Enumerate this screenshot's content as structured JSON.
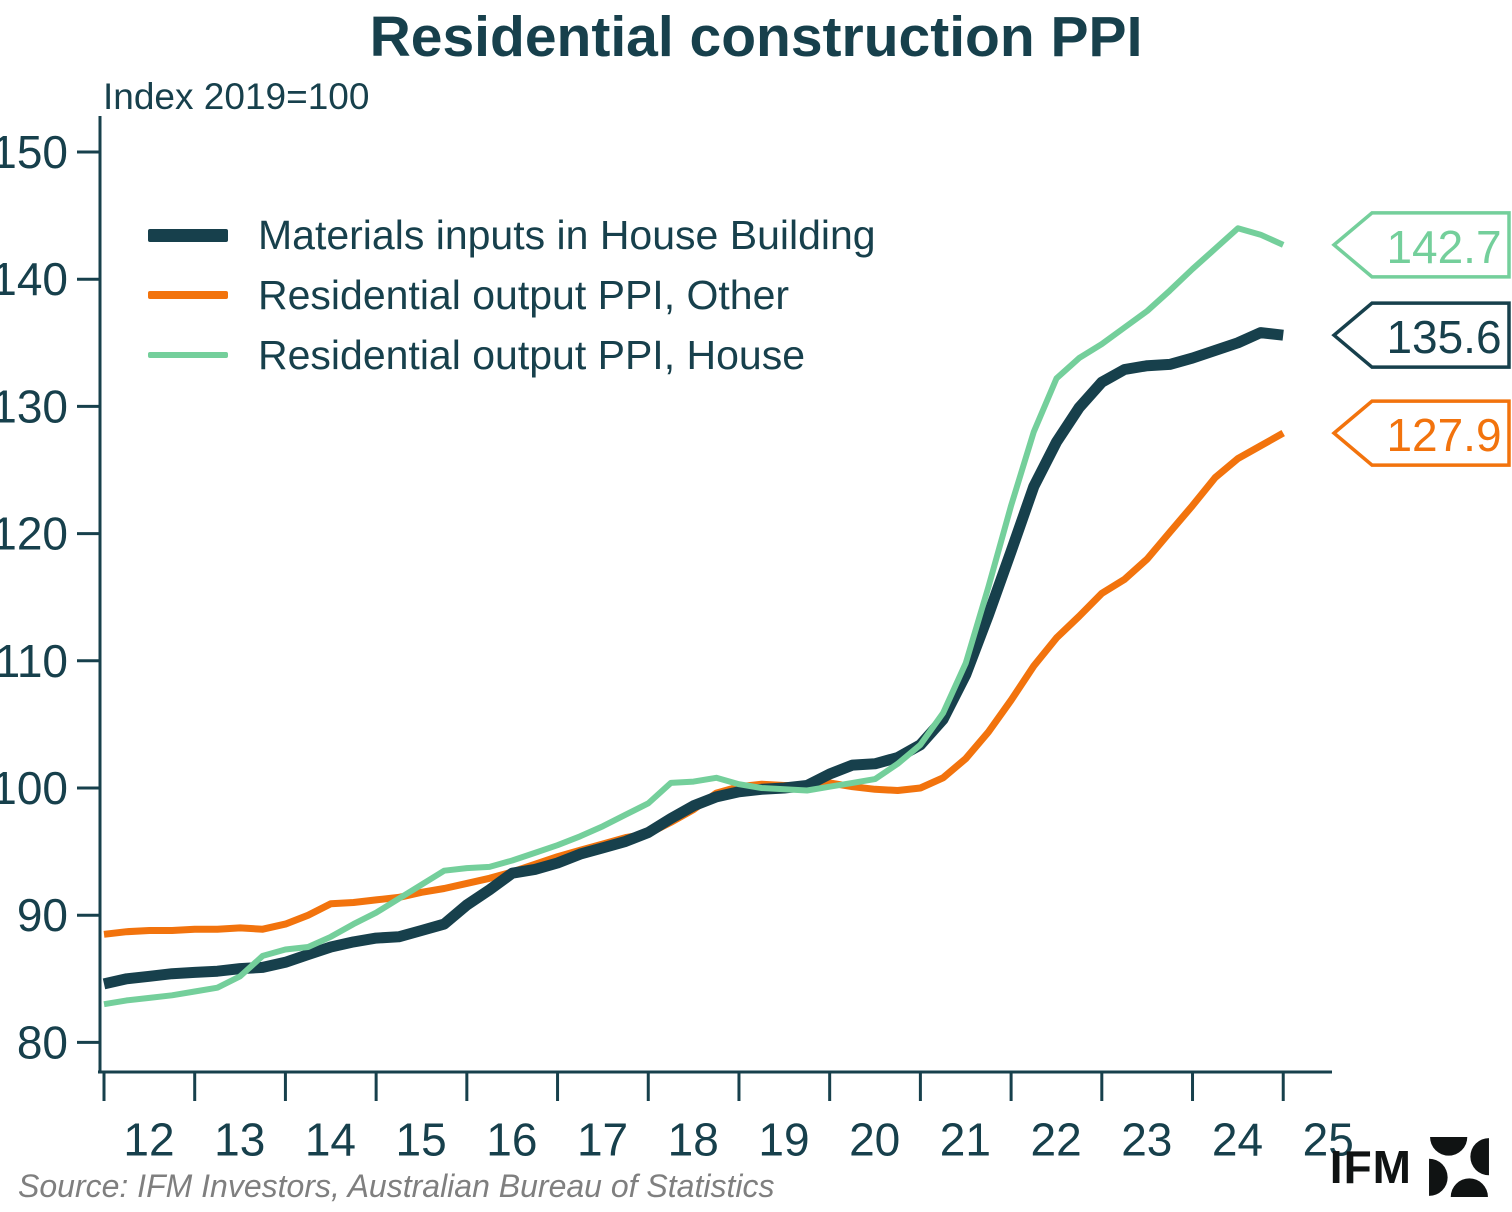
{
  "title": "Residential construction PPI",
  "subtitle": "Index 2019=100",
  "source": "Source: IFM Investors, Australian Bureau of Statistics",
  "logo": {
    "text": "IFM"
  },
  "colors": {
    "text": "#17404c",
    "axis": "#17404c",
    "background": "#ffffff",
    "source_text": "#7f7f7f",
    "logo": "#101313"
  },
  "chart_data": {
    "type": "line",
    "title": "Residential construction PPI",
    "ylabel": "Index 2019=100",
    "xlabel": "",
    "grid": false,
    "legend_position": "top-left",
    "ylim": [
      76,
      153
    ],
    "xlim": [
      2011.95,
      2025.5
    ],
    "y_ticks": [
      150,
      140,
      130,
      120,
      110,
      100,
      90,
      80
    ],
    "x_ticks": [
      "12",
      "13",
      "14",
      "15",
      "16",
      "17",
      "18",
      "19",
      "20",
      "21",
      "22",
      "23",
      "24",
      "25"
    ],
    "x": [
      2012,
      2012.25,
      2012.5,
      2012.75,
      2013,
      2013.25,
      2013.5,
      2013.75,
      2014,
      2014.25,
      2014.5,
      2014.75,
      2015,
      2015.25,
      2015.5,
      2015.75,
      2016,
      2016.25,
      2016.5,
      2016.75,
      2017,
      2017.25,
      2017.5,
      2017.75,
      2018,
      2018.25,
      2018.5,
      2018.75,
      2019,
      2019.25,
      2019.5,
      2019.75,
      2020,
      2020.25,
      2020.5,
      2020.75,
      2021,
      2021.25,
      2021.5,
      2021.75,
      2022,
      2022.25,
      2022.5,
      2022.75,
      2023,
      2023.25,
      2023.5,
      2023.75,
      2024,
      2024.25,
      2024.5,
      2024.75,
      2025
    ],
    "series": [
      {
        "name": "Materials inputs in House Building",
        "color": "#17404c",
        "line_width": 11,
        "end_label": "135.6",
        "values": [
          84.6,
          85.0,
          85.2,
          85.4,
          85.5,
          85.6,
          85.8,
          85.9,
          86.3,
          86.9,
          87.5,
          87.9,
          88.2,
          88.3,
          88.8,
          89.3,
          90.8,
          92.0,
          93.3,
          93.6,
          94.1,
          94.8,
          95.3,
          95.8,
          96.5,
          97.6,
          98.6,
          99.3,
          99.7,
          99.9,
          100.0,
          100.2,
          101.1,
          101.8,
          101.9,
          102.4,
          103.4,
          105.4,
          108.9,
          113.6,
          118.6,
          123.7,
          127.2,
          129.9,
          131.9,
          132.9,
          133.2,
          133.3,
          133.8,
          134.4,
          135.0,
          135.8,
          135.6
        ]
      },
      {
        "name": "Residential output PPI, Other",
        "color": "#f2730d",
        "line_width": 7,
        "end_label": "127.9",
        "values": [
          88.5,
          88.7,
          88.8,
          88.8,
          88.9,
          88.9,
          89.0,
          88.9,
          89.3,
          90.0,
          90.9,
          91.0,
          91.2,
          91.4,
          91.8,
          92.1,
          92.5,
          92.9,
          93.4,
          94.0,
          94.6,
          95.1,
          95.6,
          96.1,
          96.4,
          97.3,
          98.3,
          99.6,
          100.1,
          100.3,
          100.2,
          100.2,
          100.4,
          100.1,
          99.9,
          99.8,
          100.0,
          100.8,
          102.3,
          104.4,
          106.9,
          109.6,
          111.8,
          113.5,
          115.3,
          116.4,
          118.0,
          120.1,
          122.2,
          124.4,
          125.9,
          126.9,
          127.9
        ]
      },
      {
        "name": "Residential output PPI, House",
        "color": "#74cf9b",
        "line_width": 6,
        "end_label": "142.7",
        "values": [
          83.0,
          83.3,
          83.5,
          83.7,
          84.0,
          84.3,
          85.2,
          86.8,
          87.3,
          87.5,
          88.3,
          89.3,
          90.2,
          91.3,
          92.4,
          93.5,
          93.7,
          93.8,
          94.3,
          94.9,
          95.5,
          96.2,
          97.0,
          97.9,
          98.8,
          100.4,
          100.5,
          100.8,
          100.3,
          100.0,
          99.9,
          99.8,
          100.1,
          100.4,
          100.7,
          101.9,
          103.4,
          105.9,
          109.8,
          115.8,
          122.2,
          128.0,
          132.2,
          133.8,
          134.9,
          136.2,
          137.5,
          139.1,
          140.8,
          142.4,
          144.0,
          143.5,
          142.7
        ]
      }
    ]
  }
}
